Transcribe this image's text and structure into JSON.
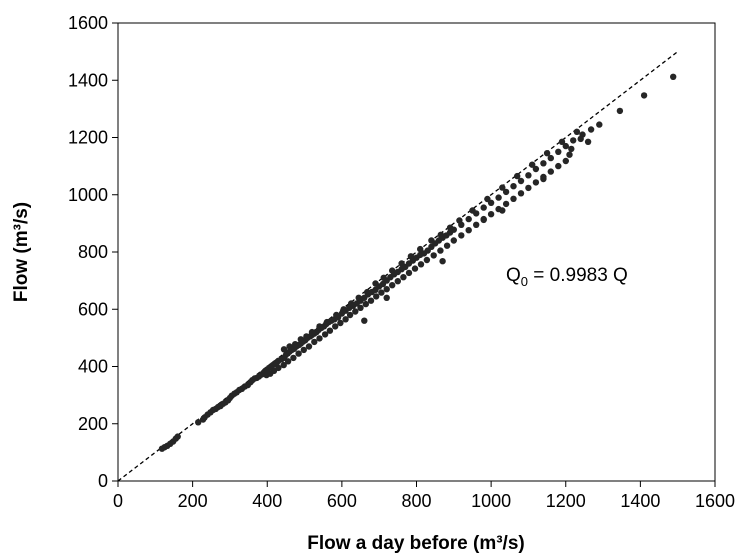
{
  "chart_data": {
    "type": "scatter",
    "xlabel": "Flow a day before (m³/s)",
    "ylabel": "Flow (m³/s)",
    "xlim": [
      0,
      1600
    ],
    "ylim": [
      0,
      1600
    ],
    "xticks": [
      "0",
      "200",
      "400",
      "600",
      "800",
      "1000",
      "1200",
      "1400",
      "1600"
    ],
    "yticks": [
      "0",
      "200",
      "400",
      "600",
      "800",
      "1000",
      "1200",
      "1400",
      "1600"
    ],
    "grid": false,
    "annotation": "Q0 = 0.9983 Q",
    "reference_line": {
      "style": "dashed",
      "x": [
        0,
        1500
      ],
      "y": [
        0,
        1500
      ]
    },
    "series": [
      {
        "marker": "circle",
        "color": "#262626",
        "points": [
          [
            118,
            113
          ],
          [
            125,
            118
          ],
          [
            132,
            123
          ],
          [
            140,
            130
          ],
          [
            148,
            138
          ],
          [
            155,
            148
          ],
          [
            160,
            155
          ],
          [
            215,
            205
          ],
          [
            228,
            215
          ],
          [
            232,
            222
          ],
          [
            240,
            232
          ],
          [
            248,
            240
          ],
          [
            255,
            248
          ],
          [
            262,
            252
          ],
          [
            268,
            258
          ],
          [
            275,
            262
          ],
          [
            282,
            270
          ],
          [
            288,
            275
          ],
          [
            295,
            282
          ],
          [
            300,
            290
          ],
          [
            305,
            298
          ],
          [
            312,
            305
          ],
          [
            318,
            310
          ],
          [
            325,
            318
          ],
          [
            332,
            322
          ],
          [
            340,
            330
          ],
          [
            348,
            335
          ],
          [
            355,
            345
          ],
          [
            360,
            352
          ],
          [
            366,
            358
          ],
          [
            372,
            360
          ],
          [
            378,
            365
          ],
          [
            385,
            372
          ],
          [
            390,
            378
          ],
          [
            395,
            385
          ],
          [
            400,
            390
          ],
          [
            405,
            395
          ],
          [
            410,
            400
          ],
          [
            415,
            405
          ],
          [
            420,
            410
          ],
          [
            425,
            412
          ],
          [
            430,
            420
          ],
          [
            438,
            425
          ],
          [
            445,
            430
          ],
          [
            450,
            440
          ],
          [
            455,
            446
          ],
          [
            460,
            452
          ],
          [
            466,
            458
          ],
          [
            472,
            462
          ],
          [
            478,
            470
          ],
          [
            485,
            475
          ],
          [
            490,
            480
          ],
          [
            496,
            487
          ],
          [
            502,
            492
          ],
          [
            508,
            500
          ],
          [
            515,
            505
          ],
          [
            520,
            510
          ],
          [
            526,
            515
          ],
          [
            532,
            520
          ],
          [
            538,
            528
          ],
          [
            545,
            535
          ],
          [
            552,
            540
          ],
          [
            558,
            548
          ],
          [
            565,
            555
          ],
          [
            572,
            560
          ],
          [
            580,
            565
          ],
          [
            590,
            572
          ],
          [
            600,
            585
          ],
          [
            610,
            595
          ],
          [
            620,
            605
          ],
          [
            630,
            612
          ],
          [
            640,
            620
          ],
          [
            650,
            630
          ],
          [
            660,
            640
          ],
          [
            670,
            652
          ],
          [
            680,
            660
          ],
          [
            690,
            668
          ],
          [
            700,
            680
          ],
          [
            710,
            688
          ],
          [
            720,
            700
          ],
          [
            730,
            712
          ],
          [
            740,
            722
          ],
          [
            750,
            730
          ],
          [
            760,
            740
          ],
          [
            770,
            748
          ],
          [
            780,
            760
          ],
          [
            790,
            770
          ],
          [
            800,
            780
          ],
          [
            810,
            790
          ],
          [
            820,
            795
          ],
          [
            830,
            805
          ],
          [
            840,
            818
          ],
          [
            850,
            830
          ],
          [
            860,
            840
          ],
          [
            870,
            850
          ],
          [
            880,
            858
          ],
          [
            890,
            868
          ],
          [
            900,
            878
          ],
          [
            920,
            895
          ],
          [
            940,
            915
          ],
          [
            960,
            935
          ],
          [
            980,
            955
          ],
          [
            1000,
            972
          ],
          [
            1020,
            990
          ],
          [
            1040,
            1010
          ],
          [
            1060,
            1030
          ],
          [
            1080,
            1048
          ],
          [
            1100,
            1068
          ],
          [
            1120,
            1090
          ],
          [
            1140,
            1110
          ],
          [
            1160,
            1128
          ],
          [
            1180,
            1150
          ],
          [
            1200,
            1170
          ],
          [
            1220,
            1190
          ],
          [
            1245,
            1210
          ],
          [
            1268,
            1228
          ],
          [
            1290,
            1245
          ],
          [
            1345,
            1293
          ],
          [
            1410,
            1347
          ],
          [
            1488,
            1412
          ],
          [
            398,
            370
          ],
          [
            408,
            375
          ],
          [
            418,
            385
          ],
          [
            430,
            395
          ],
          [
            444,
            405
          ],
          [
            456,
            418
          ],
          [
            470,
            430
          ],
          [
            484,
            445
          ],
          [
            498,
            458
          ],
          [
            512,
            470
          ],
          [
            526,
            486
          ],
          [
            540,
            498
          ],
          [
            555,
            512
          ],
          [
            568,
            525
          ],
          [
            582,
            540
          ],
          [
            596,
            552
          ],
          [
            610,
            565
          ],
          [
            622,
            580
          ],
          [
            636,
            592
          ],
          [
            650,
            605
          ],
          [
            664,
            618
          ],
          [
            678,
            630
          ],
          [
            692,
            645
          ],
          [
            706,
            658
          ],
          [
            720,
            670
          ],
          [
            735,
            684
          ],
          [
            750,
            698
          ],
          [
            765,
            712
          ],
          [
            780,
            727
          ],
          [
            796,
            742
          ],
          [
            812,
            757
          ],
          [
            828,
            772
          ],
          [
            846,
            788
          ],
          [
            864,
            805
          ],
          [
            882,
            822
          ],
          [
            900,
            840
          ],
          [
            920,
            858
          ],
          [
            940,
            876
          ],
          [
            960,
            895
          ],
          [
            980,
            912
          ],
          [
            1000,
            932
          ],
          [
            1020,
            950
          ],
          [
            1040,
            968
          ],
          [
            1060,
            986
          ],
          [
            1080,
            1005
          ],
          [
            1100,
            1024
          ],
          [
            1120,
            1043
          ],
          [
            1140,
            1062
          ],
          [
            1160,
            1081
          ],
          [
            1180,
            1100
          ],
          [
            1200,
            1118
          ],
          [
            1215,
            1160
          ],
          [
            660,
            560
          ],
          [
            720,
            640
          ],
          [
            870,
            768
          ],
          [
            980,
            915
          ],
          [
            1030,
            945
          ],
          [
            1140,
            1055
          ],
          [
            1210,
            1140
          ],
          [
            1240,
            1195
          ],
          [
            1260,
            1185
          ],
          [
            445,
            460
          ],
          [
            460,
            470
          ],
          [
            475,
            478
          ],
          [
            490,
            495
          ],
          [
            505,
            505
          ],
          [
            520,
            520
          ],
          [
            540,
            540
          ],
          [
            560,
            555
          ],
          [
            585,
            580
          ],
          [
            605,
            600
          ],
          [
            625,
            620
          ],
          [
            645,
            640
          ],
          [
            668,
            660
          ],
          [
            690,
            690
          ],
          [
            712,
            710
          ],
          [
            735,
            735
          ],
          [
            760,
            760
          ],
          [
            785,
            785
          ],
          [
            810,
            810
          ],
          [
            840,
            840
          ],
          [
            865,
            860
          ],
          [
            890,
            885
          ],
          [
            915,
            910
          ],
          [
            950,
            945
          ],
          [
            990,
            985
          ],
          [
            1030,
            1025
          ],
          [
            1070,
            1065
          ],
          [
            1110,
            1105
          ],
          [
            1150,
            1145
          ],
          [
            1190,
            1185
          ],
          [
            1230,
            1220
          ]
        ]
      }
    ]
  }
}
